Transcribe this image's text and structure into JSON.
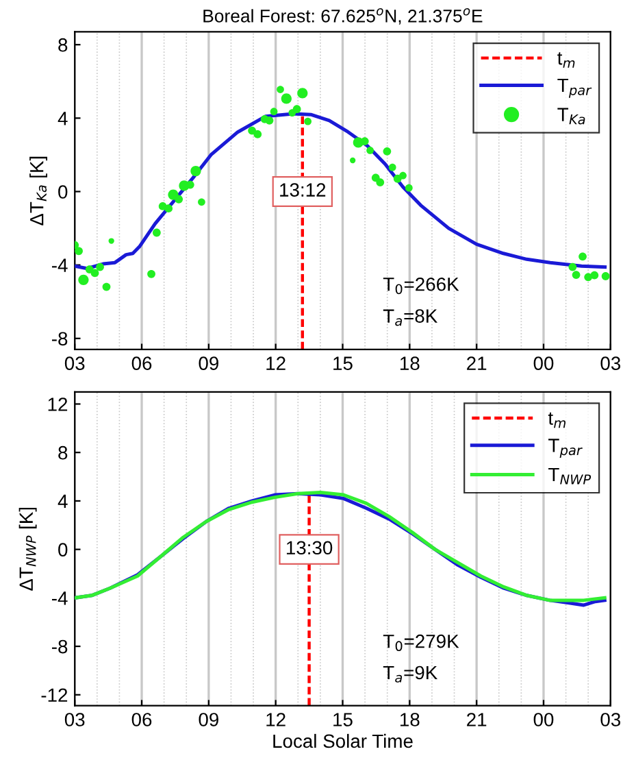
{
  "chart_data": [
    {
      "type": "line",
      "title": "Boreal Forest: 67.625$^{o}$N, 21.375$^{o}$E",
      "ylabel": "ΔT$_{Ka}$ [K]",
      "xlim": [
        3,
        27
      ],
      "xticks": [
        {
          "value": 3,
          "label": "03"
        },
        {
          "value": 6,
          "label": "06"
        },
        {
          "value": 9,
          "label": "09"
        },
        {
          "value": 12,
          "label": "12"
        },
        {
          "value": 15,
          "label": "15"
        },
        {
          "value": 18,
          "label": "18"
        },
        {
          "value": 21,
          "label": "21"
        },
        {
          "value": 24,
          "label": "00"
        },
        {
          "value": 27,
          "label": "03"
        }
      ],
      "ylim": [
        -8.6,
        8.7
      ],
      "yticks": [
        -8,
        -4,
        0,
        4,
        8
      ],
      "grid": "x",
      "legend": "top right",
      "series": [
        {
          "name": "t$_{m}$",
          "line_style": "dashed",
          "color": "#ff0000",
          "x": [
            13.2,
            13.2
          ],
          "values": [
            -8.6,
            4.2
          ]
        },
        {
          "name": "T$_{par}$",
          "line_style": "solid",
          "color": "#1a1ad6",
          "x": [
            3,
            3.55,
            4.27,
            4.8,
            5.3,
            5.6,
            5.9,
            6.6,
            7.45,
            8.3,
            9.1,
            10.3,
            11.55,
            12.8,
            13.6,
            14.4,
            15.25,
            16.1,
            16.9,
            17.7,
            18.5,
            19.75,
            21.0,
            22.2,
            23.25,
            24.3,
            25.7,
            26.75
          ],
          "values": [
            -4.06,
            -4.19,
            -3.94,
            -3.87,
            -3.44,
            -3.37,
            -3.0,
            -1.75,
            -0.5,
            0.75,
            2.0,
            3.24,
            4.1,
            4.24,
            4.19,
            3.87,
            3.24,
            2.5,
            1.5,
            0.25,
            -0.75,
            -2.0,
            -2.87,
            -3.37,
            -3.69,
            -3.87,
            -4.06,
            -4.11
          ]
        },
        {
          "name": "T$_{Ka}$",
          "type": "scatter",
          "marker": "circle",
          "color": "#22ee22",
          "x": [
            3.0,
            3.18,
            3.39,
            3.66,
            3.9,
            4.13,
            4.42,
            4.64,
            6.43,
            6.67,
            6.94,
            7.2,
            7.41,
            7.66,
            7.9,
            8.17,
            8.42,
            8.68,
            10.94,
            11.19,
            11.51,
            11.72,
            11.92,
            12.21,
            12.48,
            12.74,
            12.95,
            13.2,
            13.44,
            15.45,
            15.7,
            15.99,
            16.23,
            16.48,
            16.68,
            16.99,
            17.23,
            17.46,
            17.7,
            17.97,
            25.3,
            25.46,
            25.75,
            26.0,
            26.28,
            26.78
          ],
          "values": [
            -2.92,
            -3.24,
            -4.81,
            -4.24,
            -4.44,
            -4.11,
            -5.19,
            -2.69,
            -4.49,
            -2.24,
            -0.8,
            -0.92,
            -0.17,
            -0.42,
            0.32,
            0.37,
            1.12,
            -0.57,
            3.32,
            3.12,
            3.94,
            3.87,
            4.36,
            5.56,
            5.06,
            4.29,
            4.49,
            5.36,
            3.82,
            1.7,
            2.67,
            2.74,
            2.24,
            0.75,
            0.5,
            2.19,
            1.32,
            0.7,
            0.87,
            0.2,
            -4.11,
            -4.54,
            -3.54,
            -4.66,
            -4.56,
            -4.61
          ],
          "sizes": [
            0.6,
            0.6,
            1,
            0.6,
            0.6,
            0.6,
            0.6,
            0.3,
            0.6,
            0.6,
            0.6,
            0.6,
            1,
            0.6,
            1,
            0.6,
            1,
            0.5,
            0.6,
            0.6,
            0.6,
            0.6,
            0.5,
            0.5,
            1,
            0.5,
            0.6,
            1,
            0.5,
            0.3,
            1,
            0.6,
            0.5,
            0.6,
            0.6,
            0.6,
            0.5,
            0.6,
            0.5,
            0.5,
            0.6,
            0.6,
            0.6,
            0.6,
            0.6,
            0.6
          ]
        }
      ],
      "annotations": [
        {
          "text": "13:12",
          "x": 13.2,
          "y": 0
        },
        "T$_{0}$=266K",
        "T$_{a}$=8K"
      ]
    },
    {
      "type": "line",
      "xlabel": "Local Solar Time",
      "ylabel": "ΔT$_{NWP}$ [K]",
      "xlim": [
        3,
        27
      ],
      "xticks": [
        {
          "value": 3,
          "label": "03"
        },
        {
          "value": 6,
          "label": "06"
        },
        {
          "value": 9,
          "label": "09"
        },
        {
          "value": 12,
          "label": "12"
        },
        {
          "value": 15,
          "label": "15"
        },
        {
          "value": 18,
          "label": "18"
        },
        {
          "value": 21,
          "label": "21"
        },
        {
          "value": 24,
          "label": "00"
        },
        {
          "value": 27,
          "label": "03"
        }
      ],
      "ylim": [
        -12.9,
        13
      ],
      "yticks": [
        -12,
        -8,
        -4,
        0,
        4,
        8,
        12
      ],
      "grid": "x",
      "legend": "top right",
      "series": [
        {
          "name": "t$_{m}$",
          "line_style": "dashed",
          "color": "#ff0000",
          "x": [
            13.5,
            13.5
          ],
          "values": [
            -12.9,
            4.6
          ]
        },
        {
          "name": "T$_{par}$",
          "line_style": "solid",
          "color": "#1a1ad6",
          "x": [
            3,
            3.76,
            4.58,
            5.81,
            6.84,
            7.86,
            8.89,
            9.91,
            10.94,
            11.96,
            12.99,
            14.01,
            15.04,
            16.06,
            17.09,
            18.12,
            19.14,
            20.17,
            21.19,
            22.22,
            23.25,
            24.27,
            25.09,
            25.8,
            26.32,
            26.74
          ],
          "values": [
            -4.0,
            -3.8,
            -3.2,
            -2.1,
            -0.6,
            0.9,
            2.3,
            3.4,
            4.0,
            4.5,
            4.6,
            4.5,
            4.2,
            3.4,
            2.5,
            1.3,
            0,
            -1.3,
            -2.3,
            -3.2,
            -3.8,
            -4.2,
            -4.4,
            -4.6,
            -4.3,
            -4.2
          ]
        },
        {
          "name": "T$_{NWP}$",
          "line_style": "solid",
          "color": "#33ee33",
          "x": [
            3,
            3.76,
            4.58,
            5.81,
            6.84,
            7.86,
            8.89,
            9.91,
            10.94,
            11.96,
            12.99,
            14.01,
            15.04,
            16.06,
            17.09,
            18.12,
            19.14,
            20.17,
            21.19,
            22.22,
            23.25,
            24.27,
            25.09,
            25.8,
            26.74
          ],
          "values": [
            -4.0,
            -3.8,
            -3.2,
            -2.2,
            -0.6,
            1.0,
            2.3,
            3.3,
            3.9,
            4.3,
            4.6,
            4.7,
            4.5,
            3.8,
            2.7,
            1.4,
            0,
            -1.1,
            -2.2,
            -3.1,
            -3.8,
            -4.2,
            -4.2,
            -4.2,
            -4.0
          ]
        }
      ],
      "annotations": [
        {
          "text": "13:30",
          "x": 13.5,
          "y": 0
        },
        "T$_{0}$=279K",
        "T$_{a}$=9K"
      ]
    }
  ]
}
